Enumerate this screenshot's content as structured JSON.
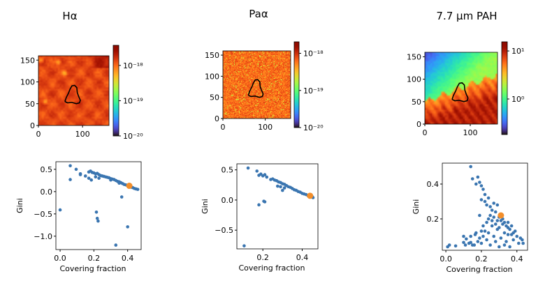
{
  "colors": {
    "points": "#3a75b0",
    "highlight": "#f28e2b",
    "contour": "#000000"
  },
  "chart_data": [
    {
      "type": "heatmap",
      "title": "Hα",
      "colormap": "turbo",
      "colorbar_scale": "log",
      "xlim": [
        0,
        160
      ],
      "ylim": [
        0,
        160
      ],
      "x_ticks": [
        "0",
        "100"
      ],
      "x_tick_values": [
        0,
        100
      ],
      "y_ticks": [
        "0",
        "50",
        "100",
        "150"
      ],
      "y_tick_values": [
        0,
        50,
        100,
        150
      ],
      "clim_log10": [
        -20,
        -17.43
      ],
      "colorbar_ticks": [
        "10⁻¹⁸",
        "10⁻¹⁹",
        "10⁻²⁰"
      ],
      "colorbar_tick_log10": [
        -18,
        -19,
        -20
      ],
      "contour": [
        [
          60,
          55
        ],
        [
          63,
          64
        ],
        [
          68,
          74
        ],
        [
          72,
          84
        ],
        [
          76,
          91
        ],
        [
          82,
          92
        ],
        [
          87,
          87
        ],
        [
          88,
          76
        ],
        [
          91,
          67
        ],
        [
          95,
          58
        ],
        [
          93,
          52
        ],
        [
          86,
          50
        ],
        [
          76,
          53
        ],
        [
          66,
          52
        ],
        [
          60,
          55
        ]
      ]
    },
    {
      "type": "heatmap",
      "title": "Paα",
      "colormap": "turbo",
      "colorbar_scale": "log",
      "xlim": [
        0,
        160
      ],
      "ylim": [
        0,
        160
      ],
      "x_ticks": [
        "0",
        "100"
      ],
      "x_tick_values": [
        0,
        100
      ],
      "y_ticks": [
        "0",
        "50",
        "100",
        "150"
      ],
      "y_tick_values": [
        0,
        50,
        100,
        150
      ],
      "clim_log10": [
        -20,
        -17.69
      ],
      "colorbar_ticks": [
        "10⁻¹⁸",
        "10⁻¹⁹",
        "10⁻²⁰"
      ],
      "colorbar_tick_log10": [
        -18,
        -19,
        -20
      ],
      "contour": [
        [
          60,
          55
        ],
        [
          63,
          64
        ],
        [
          68,
          74
        ],
        [
          72,
          84
        ],
        [
          76,
          91
        ],
        [
          82,
          92
        ],
        [
          87,
          87
        ],
        [
          88,
          76
        ],
        [
          91,
          67
        ],
        [
          95,
          58
        ],
        [
          93,
          52
        ],
        [
          86,
          50
        ],
        [
          76,
          53
        ],
        [
          66,
          52
        ],
        [
          60,
          55
        ]
      ]
    },
    {
      "type": "heatmap",
      "title": "7.7 µm PAH",
      "colormap": "turbo",
      "colorbar_scale": "log",
      "xlim": [
        0,
        160
      ],
      "ylim": [
        0,
        160
      ],
      "x_ticks": [
        "0",
        "100"
      ],
      "x_tick_values": [
        0,
        100
      ],
      "y_ticks": [
        "0",
        "50",
        "100",
        "150"
      ],
      "y_tick_values": [
        0,
        50,
        100,
        150
      ],
      "clim_log10": [
        -0.74,
        1.19
      ],
      "colorbar_ticks": [
        "10¹",
        "10⁰"
      ],
      "colorbar_tick_log10": [
        1,
        0
      ],
      "contour": [
        [
          60,
          55
        ],
        [
          63,
          64
        ],
        [
          68,
          74
        ],
        [
          72,
          84
        ],
        [
          76,
          91
        ],
        [
          82,
          92
        ],
        [
          87,
          87
        ],
        [
          88,
          76
        ],
        [
          91,
          67
        ],
        [
          95,
          58
        ],
        [
          93,
          52
        ],
        [
          86,
          50
        ],
        [
          76,
          53
        ],
        [
          66,
          52
        ],
        [
          60,
          55
        ]
      ]
    },
    {
      "type": "scatter",
      "xlabel": "Covering fraction",
      "ylabel": "Gini",
      "xlim": [
        -0.025,
        0.48
      ],
      "ylim": [
        -1.3,
        0.67
      ],
      "x_ticks": [
        "0.0",
        "0.2",
        "0.4"
      ],
      "x_tick_values": [
        0,
        0.2,
        0.4
      ],
      "y_ticks": [
        "0.5",
        "0.0",
        "−0.5",
        "−1.0"
      ],
      "y_tick_values": [
        0.5,
        0,
        -0.5,
        -1.0
      ],
      "points": [
        [
          0.06,
          0.58
        ],
        [
          0.095,
          0.5
        ],
        [
          0.06,
          0.27
        ],
        [
          0.12,
          0.38
        ],
        [
          0.12,
          0.4
        ],
        [
          0.15,
          0.35
        ],
        [
          0.17,
          0.3
        ],
        [
          0.185,
          0.26
        ],
        [
          0.0,
          -0.41
        ],
        [
          0.215,
          -0.46
        ],
        [
          0.22,
          -0.6
        ],
        [
          0.225,
          -0.66
        ],
        [
          0.365,
          -0.12
        ],
        [
          0.4,
          -0.79
        ],
        [
          0.33,
          -1.2
        ],
        [
          0.17,
          0.44
        ],
        [
          0.18,
          0.46
        ],
        [
          0.19,
          0.43
        ],
        [
          0.2,
          0.42
        ],
        [
          0.21,
          0.4
        ],
        [
          0.22,
          0.41
        ],
        [
          0.23,
          0.38
        ],
        [
          0.24,
          0.36
        ],
        [
          0.25,
          0.35
        ],
        [
          0.26,
          0.34
        ],
        [
          0.27,
          0.33
        ],
        [
          0.28,
          0.32
        ],
        [
          0.29,
          0.31
        ],
        [
          0.3,
          0.29
        ],
        [
          0.31,
          0.28
        ],
        [
          0.32,
          0.27
        ],
        [
          0.33,
          0.25
        ],
        [
          0.34,
          0.23
        ],
        [
          0.35,
          0.22
        ],
        [
          0.36,
          0.2
        ],
        [
          0.37,
          0.18
        ],
        [
          0.38,
          0.16
        ],
        [
          0.39,
          0.15
        ],
        [
          0.4,
          0.13
        ],
        [
          0.42,
          0.1
        ],
        [
          0.43,
          0.09
        ],
        [
          0.44,
          0.07
        ],
        [
          0.45,
          0.06
        ],
        [
          0.46,
          0.05
        ],
        [
          0.21,
          0.33
        ],
        [
          0.23,
          0.3
        ],
        [
          0.3,
          0.26
        ],
        [
          0.35,
          0.19
        ]
      ],
      "highlight": [
        0.41,
        0.13
      ]
    },
    {
      "type": "scatter",
      "xlabel": "Covering fraction",
      "ylabel": "Gini",
      "xlim": [
        0.068,
        0.48
      ],
      "ylim": [
        -0.81,
        0.6
      ],
      "x_ticks": [
        "0.2",
        "0.4"
      ],
      "x_tick_values": [
        0.2,
        0.4
      ],
      "y_ticks": [
        "0.5",
        "0.0",
        "−0.5"
      ],
      "y_tick_values": [
        0.5,
        0,
        -0.5
      ],
      "points": [
        [
          0.125,
          0.53
        ],
        [
          0.17,
          0.48
        ],
        [
          0.18,
          0.41
        ],
        [
          0.19,
          0.43
        ],
        [
          0.2,
          0.4
        ],
        [
          0.21,
          0.42
        ],
        [
          0.22,
          0.38
        ],
        [
          0.24,
          0.34
        ],
        [
          0.25,
          0.35
        ],
        [
          0.26,
          0.33
        ],
        [
          0.27,
          0.32
        ],
        [
          0.28,
          0.3
        ],
        [
          0.29,
          0.29
        ],
        [
          0.3,
          0.27
        ],
        [
          0.31,
          0.26
        ],
        [
          0.32,
          0.24
        ],
        [
          0.33,
          0.22
        ],
        [
          0.34,
          0.21
        ],
        [
          0.35,
          0.19
        ],
        [
          0.36,
          0.17
        ],
        [
          0.37,
          0.16
        ],
        [
          0.38,
          0.14
        ],
        [
          0.39,
          0.13
        ],
        [
          0.4,
          0.11
        ],
        [
          0.41,
          0.1
        ],
        [
          0.42,
          0.09
        ],
        [
          0.43,
          0.07
        ],
        [
          0.45,
          0.06
        ],
        [
          0.455,
          0.04
        ],
        [
          0.29,
          0.22
        ],
        [
          0.3,
          0.16
        ],
        [
          0.31,
          0.2
        ],
        [
          0.275,
          0.23
        ],
        [
          0.18,
          -0.08
        ],
        [
          0.205,
          -0.02
        ],
        [
          0.21,
          -0.03
        ],
        [
          0.105,
          -0.76
        ]
      ],
      "highlight": [
        0.44,
        0.07
      ]
    },
    {
      "type": "scatter",
      "xlabel": "Covering fraction",
      "ylabel": "Gini",
      "xlim": [
        -0.02,
        0.46
      ],
      "ylim": [
        0.02,
        0.52
      ],
      "x_ticks": [
        "0.0",
        "0.2",
        "0.4"
      ],
      "x_tick_values": [
        0,
        0.2,
        0.4
      ],
      "y_ticks": [
        "0.4",
        "0.2"
      ],
      "y_tick_values": [
        0.4,
        0.2
      ],
      "points": [
        [
          0.01,
          0.04
        ],
        [
          0.02,
          0.05
        ],
        [
          0.055,
          0.045
        ],
        [
          0.1,
          0.065
        ],
        [
          0.1,
          0.1
        ],
        [
          0.11,
          0.05
        ],
        [
          0.115,
          0.085
        ],
        [
          0.13,
          0.06
        ],
        [
          0.14,
          0.1
        ],
        [
          0.14,
          0.065
        ],
        [
          0.15,
          0.05
        ],
        [
          0.16,
          0.05
        ],
        [
          0.165,
          0.11
        ],
        [
          0.17,
          0.12
        ],
        [
          0.18,
          0.07
        ],
        [
          0.19,
          0.09
        ],
        [
          0.2,
          0.06
        ],
        [
          0.21,
          0.1
        ],
        [
          0.22,
          0.13
        ],
        [
          0.23,
          0.08
        ],
        [
          0.24,
          0.12
        ],
        [
          0.25,
          0.05
        ],
        [
          0.26,
          0.16
        ],
        [
          0.27,
          0.1
        ],
        [
          0.28,
          0.07
        ],
        [
          0.29,
          0.14
        ],
        [
          0.3,
          0.04
        ],
        [
          0.31,
          0.09
        ],
        [
          0.32,
          0.17
        ],
        [
          0.33,
          0.12
        ],
        [
          0.34,
          0.07
        ],
        [
          0.35,
          0.15
        ],
        [
          0.36,
          0.04
        ],
        [
          0.37,
          0.11
        ],
        [
          0.38,
          0.08
        ],
        [
          0.39,
          0.13
        ],
        [
          0.4,
          0.1
        ],
        [
          0.41,
          0.06
        ],
        [
          0.42,
          0.09
        ],
        [
          0.43,
          0.08
        ],
        [
          0.435,
          0.06
        ],
        [
          0.14,
          0.5
        ],
        [
          0.15,
          0.43
        ],
        [
          0.17,
          0.4
        ],
        [
          0.18,
          0.44
        ],
        [
          0.19,
          0.41
        ],
        [
          0.2,
          0.39
        ],
        [
          0.21,
          0.37
        ],
        [
          0.22,
          0.34
        ],
        [
          0.2,
          0.31
        ],
        [
          0.22,
          0.3
        ],
        [
          0.23,
          0.28
        ],
        [
          0.24,
          0.32
        ],
        [
          0.25,
          0.27
        ],
        [
          0.26,
          0.25
        ],
        [
          0.27,
          0.29
        ],
        [
          0.29,
          0.28
        ],
        [
          0.28,
          0.24
        ],
        [
          0.3,
          0.21
        ],
        [
          0.31,
          0.19
        ],
        [
          0.32,
          0.2
        ],
        [
          0.33,
          0.18
        ],
        [
          0.34,
          0.16
        ],
        [
          0.35,
          0.18
        ],
        [
          0.36,
          0.14
        ],
        [
          0.37,
          0.16
        ],
        [
          0.24,
          0.2
        ],
        [
          0.25,
          0.22
        ],
        [
          0.26,
          0.19
        ],
        [
          0.27,
          0.21
        ],
        [
          0.28,
          0.17
        ],
        [
          0.29,
          0.19
        ],
        [
          0.3,
          0.15
        ],
        [
          0.21,
          0.16
        ],
        [
          0.2,
          0.13
        ],
        [
          0.19,
          0.22
        ],
        [
          0.23,
          0.18
        ],
        [
          0.35,
          0.11
        ],
        [
          0.38,
          0.12
        ],
        [
          0.33,
          0.05
        ]
      ],
      "highlight": [
        0.31,
        0.22
      ]
    }
  ]
}
